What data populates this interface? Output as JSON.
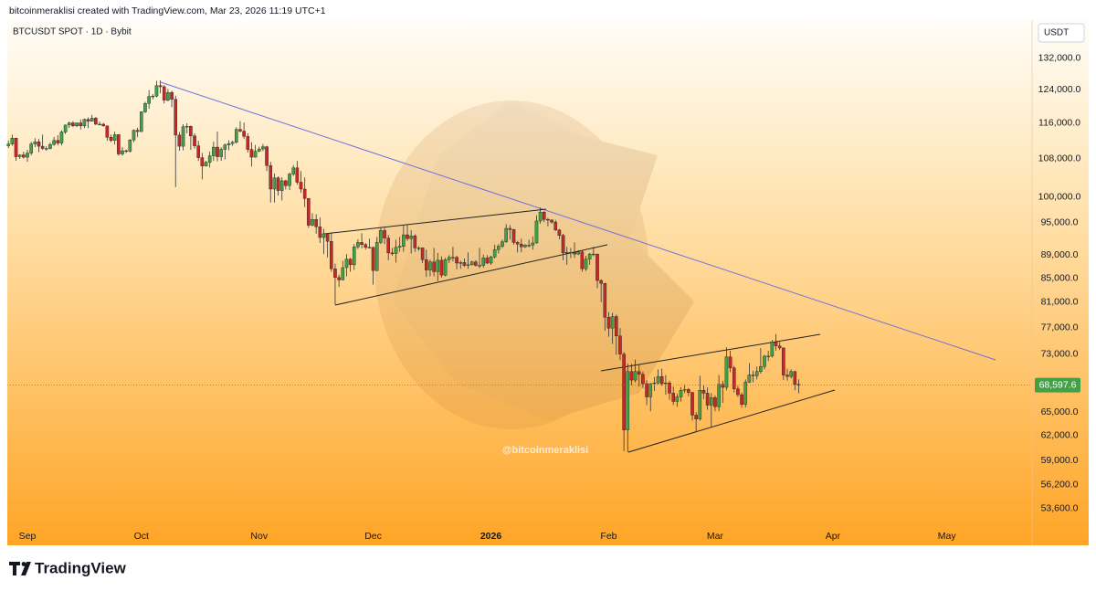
{
  "chart_data": {
    "type": "candlestick",
    "header": "bitcoinmeraklisi created with TradingView.com, Mar 23, 2026 11:19 UTC+1",
    "title": "BTCUSDT SPOT · 1D · Bybit",
    "currency": "USDT",
    "watermark": "@bitcoinmeraklisi",
    "brand": "TradingView",
    "log_scale": true,
    "grid": false,
    "up_color": "#43a047",
    "down_color": "#c62828",
    "last_price": {
      "value": 68597.6,
      "label": "68,597.6"
    },
    "ylim": [
      52100,
      142000
    ],
    "yticks": [
      {
        "value": 132000,
        "label": "132,000.0"
      },
      {
        "value": 124000,
        "label": "124,000.0"
      },
      {
        "value": 116000,
        "label": "116,000.0"
      },
      {
        "value": 108000,
        "label": "108,000.0"
      },
      {
        "value": 100000,
        "label": "100,000.0"
      },
      {
        "value": 95000,
        "label": "95,000.0"
      },
      {
        "value": 89000,
        "label": "89,000.0"
      },
      {
        "value": 85000,
        "label": "85,000.0"
      },
      {
        "value": 81000,
        "label": "81,000.0"
      },
      {
        "value": 77000,
        "label": "77,000.0"
      },
      {
        "value": 73000,
        "label": "73,000.0"
      },
      {
        "value": 65000,
        "label": "65,000.0"
      },
      {
        "value": 62000,
        "label": "62,000.0"
      },
      {
        "value": 59000,
        "label": "59,000.0"
      },
      {
        "value": 56200,
        "label": "56,200.0"
      },
      {
        "value": 53600,
        "label": "53,600.0"
      }
    ],
    "categories": [
      null,
      null,
      null,
      null,
      null,
      "Sep",
      null,
      null,
      null,
      null,
      null,
      null,
      null,
      null,
      null,
      null,
      null,
      null,
      null,
      null,
      null,
      null,
      null,
      null,
      null,
      null,
      null,
      null,
      null,
      null,
      null,
      null,
      null,
      null,
      null,
      "Oct",
      null,
      null,
      null,
      null,
      null,
      null,
      null,
      null,
      null,
      null,
      null,
      null,
      null,
      null,
      null,
      null,
      null,
      null,
      null,
      null,
      null,
      null,
      null,
      null,
      null,
      null,
      null,
      null,
      null,
      null,
      "Nov",
      null,
      null,
      null,
      null,
      null,
      null,
      null,
      null,
      null,
      null,
      null,
      null,
      null,
      null,
      null,
      null,
      null,
      null,
      null,
      null,
      null,
      null,
      null,
      null,
      null,
      null,
      null,
      null,
      null,
      "Dec",
      null,
      null,
      null,
      null,
      null,
      null,
      null,
      null,
      null,
      null,
      null,
      null,
      null,
      null,
      null,
      null,
      null,
      null,
      null,
      null,
      null,
      null,
      null,
      null,
      null,
      null,
      null,
      null,
      null,
      null,
      "2026",
      null,
      null,
      null,
      null,
      null,
      null,
      null,
      null,
      null,
      null,
      null,
      null,
      null,
      null,
      null,
      null,
      null,
      null,
      null,
      null,
      null,
      null,
      null,
      null,
      null,
      null,
      null,
      null,
      null,
      null,
      "Feb",
      null,
      null,
      null,
      null,
      null,
      null,
      null,
      null,
      null,
      null,
      null,
      null,
      null,
      null,
      null,
      null,
      null,
      null,
      null,
      null,
      null,
      null,
      null,
      null,
      null,
      null,
      null,
      "Mar",
      null,
      null,
      null,
      null,
      null,
      null,
      null,
      null,
      null,
      null,
      null,
      null,
      null,
      null,
      null,
      null,
      null,
      null,
      null,
      null,
      null,
      null,
      null,
      null,
      null,
      null,
      null,
      null,
      null,
      null,
      "Apr",
      null,
      null,
      null,
      null,
      null,
      null,
      null,
      null,
      null,
      null,
      null,
      null,
      null,
      null,
      null,
      null,
      null,
      null,
      null,
      null,
      null,
      null,
      null,
      null,
      null,
      null,
      null,
      null,
      null,
      "May"
    ],
    "open": [
      110800,
      111200,
      112500,
      108400,
      108800,
      108300,
      109200,
      111200,
      111700,
      110700,
      110200,
      110200,
      111100,
      112000,
      111400,
      113900,
      115500,
      116000,
      115300,
      116000,
      115300,
      116800,
      116400,
      117100,
      115700,
      115700,
      115300,
      112700,
      112000,
      113300,
      109000,
      109700,
      109600,
      112100,
      114300,
      114000,
      118600,
      120600,
      122300,
      122400,
      125000,
      124700,
      121400,
      123300,
      121600,
      113200,
      110700,
      115100,
      115200,
      113000,
      110800,
      108200,
      106400,
      107200,
      108600,
      110500,
      108400,
      110000,
      111000,
      111300,
      111600,
      114500,
      114100,
      112900,
      110000,
      108300,
      109600,
      110100,
      110600,
      106500,
      101600,
      103900,
      101300,
      103300,
      102300,
      104700,
      106000,
      103000,
      101600,
      99700,
      94500,
      95600,
      94200,
      92200,
      92900,
      91500,
      86600,
      85100,
      84700,
      86800,
      88300,
      87300,
      90500,
      91300,
      90900,
      90400,
      90400,
      86300,
      91300,
      93500,
      92100,
      89400,
      89300,
      90400,
      90600,
      92700,
      92000,
      92500,
      90300,
      90300,
      88200,
      86400,
      87800,
      86100,
      88100,
      85500,
      88200,
      88600,
      88600,
      87600,
      87700,
      87200,
      87300,
      87800,
      87200,
      87200,
      88500,
      87600,
      88700,
      90000,
      90600,
      91400,
      93900,
      93700,
      91300,
      91000,
      90500,
      90800,
      90800,
      91200,
      95300,
      97000,
      95600,
      95500,
      95100,
      93600,
      92600,
      89400,
      89500,
      89500,
      89200,
      89600,
      86600,
      88300,
      89200,
      89200,
      84600,
      84100,
      78600,
      76900,
      78700,
      75700,
      73000,
      62700,
      70500,
      69300,
      70500,
      70100,
      68800,
      67000,
      68800,
      68900,
      69800,
      68800,
      68900,
      67500,
      66400,
      67000,
      67900,
      68000,
      67600,
      64600,
      64100,
      67900,
      67500,
      65900,
      66900,
      65700,
      68700,
      68300,
      72600,
      71000,
      68100,
      67300,
      66000,
      69000,
      70000,
      69900,
      70500,
      71200,
      72700,
      72700,
      74800,
      74200,
      73900,
      70000,
      69800,
      70500,
      68700,
      null,
      null,
      null,
      null,
      null,
      null,
      null,
      null,
      null,
      null,
      null,
      null,
      null,
      null,
      null,
      null,
      null,
      null,
      null,
      null,
      null,
      null,
      null,
      null,
      null,
      null,
      null,
      null,
      null,
      null,
      null,
      null,
      null,
      null,
      null,
      null,
      null,
      null,
      null
    ],
    "high": [
      112000,
      113300,
      112600,
      108900,
      109500,
      109900,
      111700,
      112500,
      112300,
      113300,
      110700,
      111500,
      112800,
      113200,
      114300,
      115600,
      116300,
      116400,
      116100,
      116800,
      117000,
      117300,
      117900,
      117400,
      116300,
      116000,
      115400,
      113300,
      114000,
      113400,
      110500,
      110000,
      112300,
      114500,
      114900,
      118700,
      121000,
      123900,
      122900,
      126200,
      126300,
      125100,
      124200,
      123700,
      122500,
      113900,
      115700,
      115900,
      115400,
      113600,
      111900,
      109200,
      107500,
      109500,
      111700,
      114000,
      110500,
      111300,
      112000,
      111900,
      115000,
      116400,
      116100,
      113600,
      111600,
      111000,
      110600,
      111200,
      110800,
      107300,
      104800,
      104200,
      104000,
      103500,
      105000,
      106600,
      107500,
      105300,
      104000,
      99800,
      96800,
      96600,
      96000,
      93800,
      93000,
      93200,
      87500,
      85600,
      88000,
      89200,
      88500,
      91000,
      91900,
      93000,
      91200,
      92000,
      90500,
      92300,
      94100,
      94000,
      92700,
      90300,
      91800,
      92300,
      94600,
      94500,
      93600,
      92800,
      90600,
      90400,
      90000,
      88200,
      90300,
      89400,
      88800,
      88500,
      89000,
      90500,
      88900,
      88000,
      88400,
      89500,
      88000,
      88100,
      90300,
      89100,
      89000,
      88900,
      90900,
      91000,
      91800,
      94700,
      94500,
      93800,
      91600,
      92000,
      91000,
      91800,
      92400,
      96400,
      97900,
      97200,
      95900,
      95600,
      95500,
      93800,
      92900,
      90500,
      90300,
      91300,
      89900,
      89800,
      88900,
      89400,
      90500,
      89300,
      84800,
      84200,
      79400,
      79300,
      79000,
      76900,
      73300,
      71600,
      71600,
      72200,
      71400,
      70500,
      69300,
      68900,
      69700,
      70800,
      70900,
      70000,
      69200,
      68400,
      67400,
      68300,
      68700,
      68200,
      67700,
      65000,
      69900,
      68600,
      68300,
      67500,
      67200,
      70000,
      69200,
      74000,
      73500,
      71300,
      68500,
      67600,
      69400,
      71700,
      70600,
      71200,
      73900,
      72900,
      73500,
      75100,
      76000,
      74800,
      74000,
      70900,
      70800,
      70600,
      69400,
      null,
      null,
      null,
      null,
      null,
      null,
      null,
      null,
      null,
      null,
      null,
      null,
      null,
      null,
      null,
      null,
      null,
      null,
      null,
      null,
      null,
      null,
      null,
      null,
      null,
      null,
      null,
      null,
      null,
      null,
      null,
      null,
      null,
      null,
      null,
      null,
      null,
      null,
      null
    ],
    "low": [
      110300,
      110800,
      107500,
      107900,
      108000,
      107300,
      108700,
      110500,
      109400,
      109900,
      109700,
      110000,
      110800,
      110900,
      110900,
      113400,
      114800,
      115000,
      115000,
      114500,
      114800,
      114800,
      116300,
      115500,
      115400,
      115100,
      111900,
      111600,
      111100,
      108600,
      108600,
      109200,
      109300,
      111600,
      112700,
      113900,
      118300,
      119300,
      121600,
      122100,
      123100,
      120600,
      121100,
      119700,
      102000,
      109700,
      109800,
      113600,
      109900,
      110200,
      107500,
      103600,
      106300,
      106100,
      107500,
      107400,
      107500,
      107800,
      109800,
      110800,
      111300,
      113800,
      112300,
      109300,
      106300,
      108200,
      109400,
      109600,
      105300,
      98900,
      98900,
      100300,
      99300,
      101500,
      101400,
      104300,
      102500,
      100800,
      98000,
      94000,
      94300,
      92900,
      91200,
      89200,
      88600,
      86100,
      80600,
      83500,
      84600,
      85300,
      86100,
      86400,
      90100,
      90200,
      90000,
      90200,
      83900,
      86200,
      91000,
      91000,
      88100,
      88900,
      87700,
      89600,
      89600,
      91600,
      89300,
      89600,
      89800,
      87600,
      85200,
      85300,
      85300,
      84500,
      85100,
      85300,
      87600,
      87900,
      86500,
      86600,
      86900,
      86600,
      87200,
      87000,
      86700,
      86800,
      87400,
      87300,
      88400,
      89300,
      90300,
      91200,
      91800,
      90900,
      89500,
      89500,
      90300,
      90400,
      90000,
      91100,
      94800,
      95100,
      94300,
      94800,
      93400,
      91900,
      88100,
      87300,
      88500,
      88500,
      89000,
      86100,
      86200,
      87300,
      88800,
      83300,
      81000,
      76500,
      75600,
      74500,
      72900,
      72100,
      60100,
      60000,
      68600,
      69000,
      68400,
      68200,
      65900,
      65100,
      67800,
      68700,
      68500,
      67300,
      66600,
      65900,
      65700,
      66400,
      67500,
      67100,
      63900,
      62500,
      63900,
      66700,
      65300,
      63000,
      65100,
      65100,
      66200,
      67900,
      70400,
      67600,
      67000,
      65600,
      65600,
      68900,
      69000,
      69400,
      70200,
      70800,
      72000,
      72500,
      73500,
      73600,
      69300,
      69200,
      69500,
      67900,
      67500,
      null,
      null,
      null,
      null,
      null,
      null,
      null,
      null,
      null,
      null,
      null,
      null,
      null,
      null,
      null,
      null,
      null,
      null,
      null,
      null,
      null,
      null,
      null,
      null,
      null,
      null,
      null,
      null,
      null,
      null,
      null,
      null,
      null,
      null,
      null,
      null,
      null,
      null,
      null
    ],
    "close": [
      111200,
      112500,
      108400,
      108800,
      108300,
      109200,
      111200,
      111700,
      110700,
      110200,
      110200,
      111100,
      112000,
      111400,
      113900,
      115500,
      116000,
      115300,
      116000,
      115300,
      116800,
      116400,
      117100,
      115700,
      115700,
      115300,
      112700,
      112000,
      113300,
      109000,
      109700,
      109600,
      112100,
      114300,
      114000,
      118600,
      120600,
      122300,
      122400,
      125000,
      124700,
      121400,
      123300,
      121600,
      113200,
      110700,
      115100,
      115200,
      113000,
      110800,
      108200,
      106400,
      107200,
      108600,
      110500,
      108400,
      110000,
      111000,
      111300,
      111600,
      114500,
      114100,
      112900,
      110000,
      108300,
      109600,
      110100,
      110600,
      106500,
      101600,
      103900,
      101300,
      103300,
      102300,
      104700,
      106000,
      103000,
      101600,
      99700,
      94500,
      95600,
      94200,
      92200,
      92900,
      91500,
      86600,
      85100,
      84700,
      86800,
      88300,
      87300,
      90500,
      91300,
      90900,
      90400,
      90400,
      86300,
      91300,
      93500,
      92100,
      89400,
      89300,
      90400,
      90600,
      92700,
      92000,
      92500,
      90300,
      90300,
      88200,
      86400,
      87800,
      86100,
      88100,
      85500,
      88200,
      88600,
      88600,
      87600,
      87700,
      87200,
      87300,
      87800,
      87200,
      87200,
      88500,
      87600,
      88700,
      90000,
      90600,
      91400,
      93900,
      93700,
      91300,
      91000,
      90500,
      90800,
      90800,
      91200,
      95300,
      97000,
      95600,
      95500,
      95100,
      93600,
      92600,
      89400,
      89500,
      89500,
      89200,
      89600,
      86600,
      88300,
      89200,
      89200,
      84600,
      84100,
      78600,
      76900,
      78700,
      75700,
      73000,
      62700,
      70500,
      69300,
      70500,
      70100,
      68800,
      67000,
      68800,
      68900,
      69800,
      68800,
      68900,
      67500,
      66400,
      67000,
      67900,
      68000,
      67600,
      64600,
      64100,
      67900,
      67500,
      65900,
      66900,
      65700,
      68700,
      68300,
      72600,
      71000,
      68100,
      67300,
      66000,
      69000,
      70000,
      69900,
      70500,
      71200,
      72700,
      72700,
      74800,
      74200,
      73900,
      70000,
      69800,
      70500,
      68700,
      68597.6,
      null,
      null,
      null,
      null,
      null,
      null,
      null,
      null,
      null,
      null,
      null,
      null,
      null,
      null,
      null,
      null,
      null,
      null,
      null,
      null,
      null,
      null,
      null,
      null,
      null,
      null,
      null,
      null,
      null,
      null,
      null,
      null,
      null,
      null,
      null,
      null,
      null,
      null,
      null
    ]
  }
}
